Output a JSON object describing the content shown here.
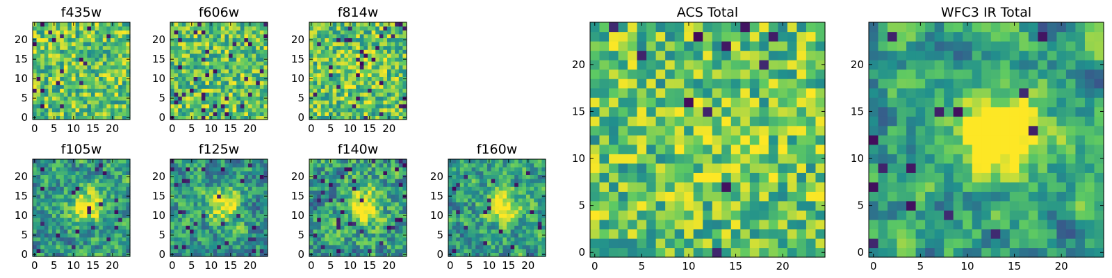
{
  "figure": {
    "colormap": "viridis",
    "colormap_stops": [
      "#440154",
      "#3b528b",
      "#21908d",
      "#5dc963",
      "#fde725"
    ]
  },
  "chart_data": [
    {
      "type": "heatmap",
      "title": "f435w",
      "grid_size": 25,
      "xticks": [
        "0",
        "5",
        "10",
        "15",
        "20"
      ],
      "yticks": [
        "0",
        "5",
        "10",
        "15",
        "20"
      ],
      "xlim": [
        -0.5,
        24.5
      ],
      "ylim": [
        -0.5,
        24.5
      ],
      "seed": 11,
      "smooth": 0,
      "peak": 0,
      "dark_fraction": 0.04
    },
    {
      "type": "heatmap",
      "title": "f606w",
      "grid_size": 25,
      "xticks": [
        "0",
        "5",
        "10",
        "15",
        "20"
      ],
      "yticks": [
        "0",
        "5",
        "10",
        "15",
        "20"
      ],
      "xlim": [
        -0.5,
        24.5
      ],
      "ylim": [
        -0.5,
        24.5
      ],
      "seed": 23,
      "smooth": 0,
      "peak": 0,
      "dark_fraction": 0.05
    },
    {
      "type": "heatmap",
      "title": "f814w",
      "grid_size": 25,
      "xticks": [
        "0",
        "5",
        "10",
        "15",
        "20"
      ],
      "yticks": [
        "0",
        "5",
        "10",
        "15",
        "20"
      ],
      "xlim": [
        -0.5,
        24.5
      ],
      "ylim": [
        -0.5,
        24.5
      ],
      "seed": 37,
      "smooth": 0,
      "peak": 0.15,
      "dark_fraction": 0.05
    },
    {
      "type": "heatmap",
      "title": "f105w",
      "grid_size": 25,
      "xticks": [
        "0",
        "5",
        "10",
        "15",
        "20"
      ],
      "yticks": [
        "0",
        "5",
        "10",
        "15",
        "20"
      ],
      "xlim": [
        -0.5,
        24.5
      ],
      "ylim": [
        -0.5,
        24.5
      ],
      "seed": 41,
      "smooth": 1,
      "peak": 0.55,
      "dark_fraction": 0.04
    },
    {
      "type": "heatmap",
      "title": "f125w",
      "grid_size": 25,
      "xticks": [
        "0",
        "5",
        "10",
        "15",
        "20"
      ],
      "yticks": [
        "0",
        "5",
        "10",
        "15",
        "20"
      ],
      "xlim": [
        -0.5,
        24.5
      ],
      "ylim": [
        -0.5,
        24.5
      ],
      "seed": 53,
      "smooth": 1,
      "peak": 0.45,
      "dark_fraction": 0.06
    },
    {
      "type": "heatmap",
      "title": "f140w",
      "grid_size": 25,
      "xticks": [
        "0",
        "5",
        "10",
        "15",
        "20"
      ],
      "yticks": [
        "0",
        "5",
        "10",
        "15",
        "20"
      ],
      "xlim": [
        -0.5,
        24.5
      ],
      "ylim": [
        -0.5,
        24.5
      ],
      "seed": 67,
      "smooth": 1,
      "peak": 0.55,
      "dark_fraction": 0.04
    },
    {
      "type": "heatmap",
      "title": "f160w",
      "grid_size": 25,
      "xticks": [
        "0",
        "5",
        "10",
        "15",
        "20"
      ],
      "yticks": [
        "0",
        "5",
        "10",
        "15",
        "20"
      ],
      "xlim": [
        -0.5,
        24.5
      ],
      "ylim": [
        -0.5,
        24.5
      ],
      "seed": 79,
      "smooth": 1,
      "peak": 0.55,
      "dark_fraction": 0.04
    },
    {
      "type": "heatmap",
      "title": "ACS Total",
      "grid_size": 25,
      "xticks": [
        "0",
        "5",
        "10",
        "15",
        "20"
      ],
      "yticks": [
        "0",
        "5",
        "10",
        "15",
        "20"
      ],
      "xlim": [
        -0.5,
        24.5
      ],
      "ylim": [
        -0.5,
        24.5
      ],
      "seed": 97,
      "smooth": 0,
      "peak": 0.1,
      "dark_fraction": 0.025
    },
    {
      "type": "heatmap",
      "title": "WFC3 IR Total",
      "grid_size": 25,
      "xticks": [
        "0",
        "5",
        "10",
        "15",
        "20"
      ],
      "yticks": [
        "0",
        "5",
        "10",
        "15",
        "20"
      ],
      "xlim": [
        -0.5,
        24.5
      ],
      "ylim": [
        -0.5,
        24.5
      ],
      "seed": 113,
      "smooth": 2,
      "peak": 0.7,
      "dark_fraction": 0.03
    }
  ]
}
